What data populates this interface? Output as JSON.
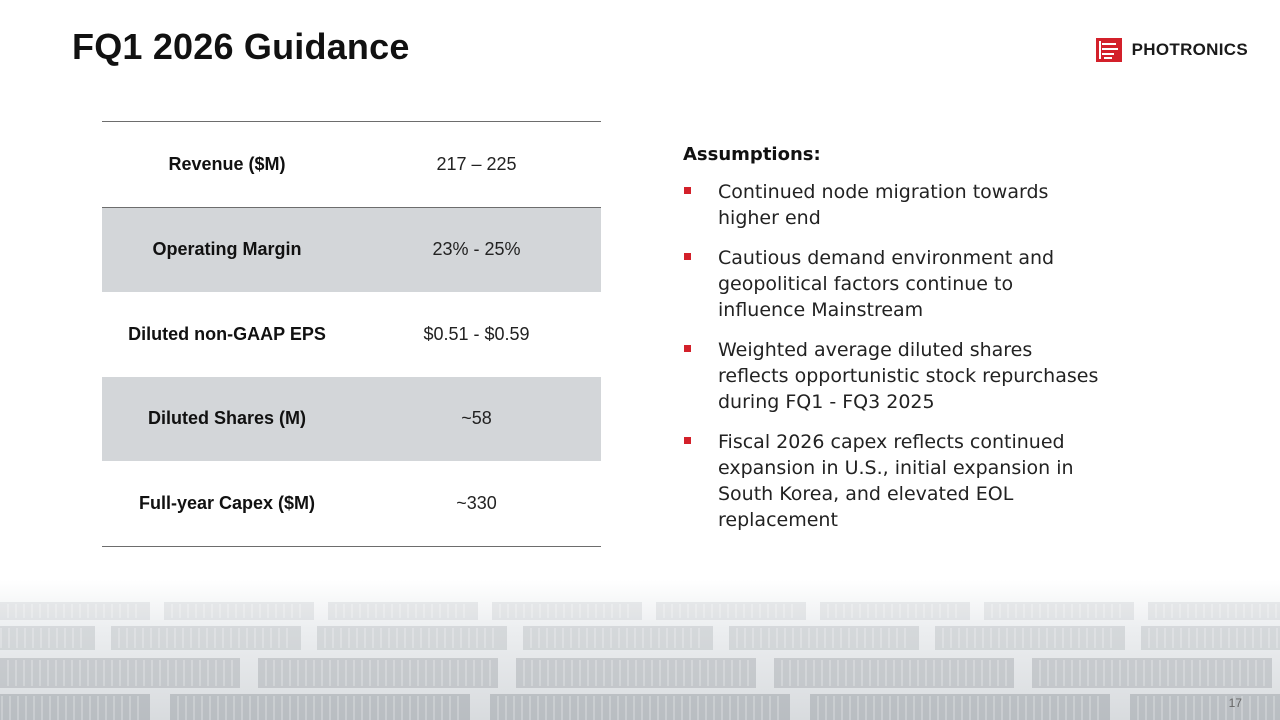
{
  "title": "FQ1 2026 Guidance",
  "logo": {
    "text": "PHOTRONICS",
    "accent_color": "#d3202a"
  },
  "table": {
    "rows": [
      {
        "label": "Revenue ($M)",
        "value": "217 – 225"
      },
      {
        "label": "Operating Margin",
        "value": "23% - 25%"
      },
      {
        "label": "Diluted non-GAAP EPS",
        "value": "$0.51 - $0.59"
      },
      {
        "label": "Diluted Shares (M)",
        "value": "~58"
      },
      {
        "label": "Full-year Capex ($M)",
        "value": "~330"
      }
    ],
    "shaded_color": "#d3d6d9"
  },
  "assumptions": {
    "heading": "Assumptions:",
    "bullets": [
      "Continued node migration towards higher end",
      "Cautious demand environment and geopolitical factors continue to influence Mainstream",
      "Weighted average diluted shares reflects opportunistic stock repurchases during FQ1 - FQ3 2025",
      "Fiscal 2026 capex reflects continued expansion in U.S., initial expansion in South Korea, and elevated EOL replacement"
    ],
    "bullet_color": "#d3202a"
  },
  "page_number": "17"
}
